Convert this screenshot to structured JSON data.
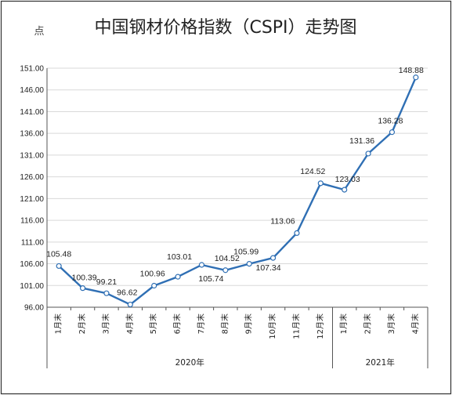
{
  "chart_data": {
    "type": "line",
    "title": "中国钢材价格指数（CSPI）走势图",
    "unit_label": "点",
    "categories": [
      "1月末",
      "2月末",
      "3月末",
      "4月末",
      "5月末",
      "6月末",
      "7月末",
      "8月末",
      "9月末",
      "10月末",
      "11月末",
      "12月末",
      "1月末",
      "2月末",
      "3月末",
      "4月末"
    ],
    "groups": [
      {
        "label": "2020年",
        "start": 0,
        "end": 11
      },
      {
        "label": "2021年",
        "start": 12,
        "end": 15
      }
    ],
    "series": [
      {
        "values": [
          105.48,
          100.39,
          99.21,
          96.62,
          100.96,
          103.01,
          105.74,
          104.52,
          105.99,
          107.34,
          113.06,
          124.52,
          123.03,
          131.36,
          136.28,
          148.88
        ]
      }
    ],
    "data_labels": [
      "105.48",
      "100.39",
      "99.21",
      "96.62",
      "100.96",
      "103.01",
      "105.74",
      "104.52",
      "105.99",
      "107.34",
      "113.06",
      "124.52",
      "123.03",
      "131.36",
      "136.28",
      "148.88"
    ],
    "yticks": [
      "96.00",
      "101.00",
      "106.00",
      "111.00",
      "116.00",
      "121.00",
      "126.00",
      "131.00",
      "136.00",
      "141.00",
      "146.00",
      "151.00"
    ],
    "ylim": [
      96,
      151
    ],
    "grid": true,
    "line_color": "#2f6fb4"
  }
}
